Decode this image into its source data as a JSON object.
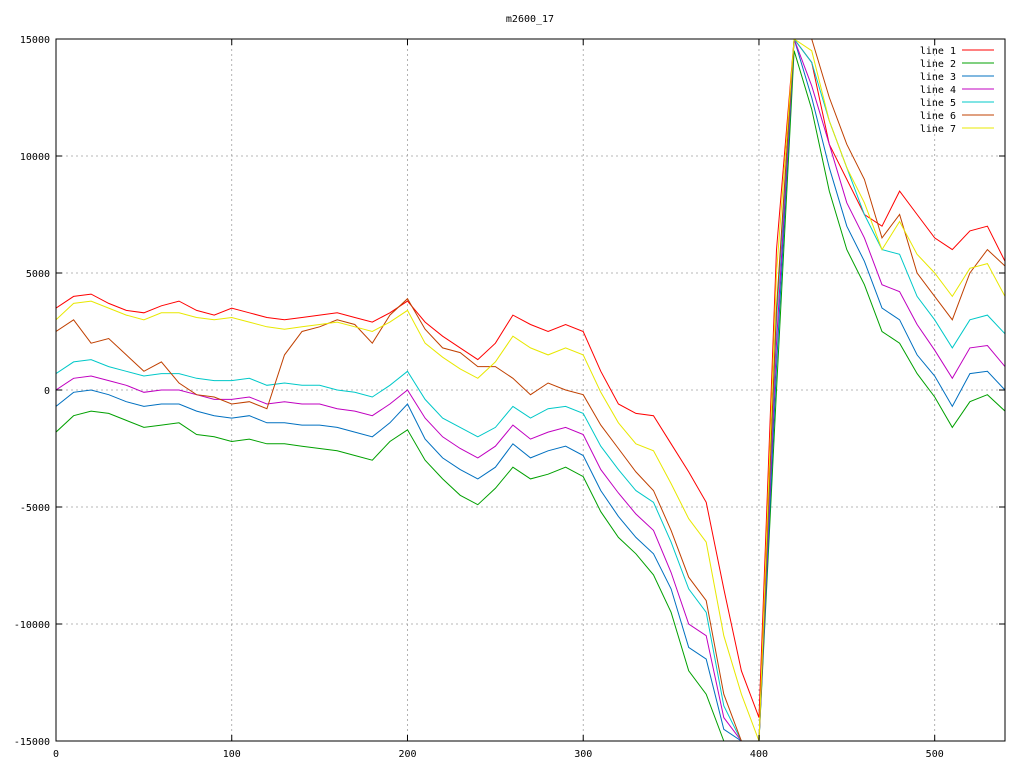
{
  "chart_data": {
    "type": "line",
    "title": "m2600_17",
    "xlabel": "",
    "ylabel": "",
    "xlim": [
      0,
      540
    ],
    "ylim": [
      -15000,
      15000
    ],
    "grid": true,
    "legend_position": "top-right",
    "x_ticks": [
      0,
      100,
      200,
      300,
      400,
      500
    ],
    "y_ticks": [
      -15000,
      -10000,
      -5000,
      0,
      5000,
      10000,
      15000
    ],
    "x": [
      0,
      10,
      20,
      30,
      40,
      50,
      60,
      70,
      80,
      90,
      100,
      110,
      120,
      130,
      140,
      150,
      160,
      170,
      180,
      190,
      200,
      210,
      220,
      230,
      240,
      250,
      260,
      270,
      280,
      290,
      300,
      310,
      320,
      330,
      340,
      350,
      360,
      370,
      380,
      390,
      400,
      410,
      420,
      430,
      440,
      450,
      460,
      470,
      480,
      490,
      500,
      510,
      520,
      530,
      540
    ],
    "series": [
      {
        "name": "line 1",
        "color": "#ff0000",
        "values": [
          3500,
          4000,
          4100,
          3700,
          3400,
          3300,
          3600,
          3800,
          3400,
          3200,
          3500,
          3300,
          3100,
          3000,
          3100,
          3200,
          3300,
          3100,
          2900,
          3300,
          3800,
          2900,
          2300,
          1800,
          1300,
          2000,
          3200,
          2800,
          2500,
          2800,
          2500,
          800,
          -600,
          -1000,
          -1100,
          -2300,
          -3500,
          -4800,
          -8500,
          -12000,
          -14000,
          6000,
          15000,
          14000,
          10500,
          9000,
          7500,
          7000,
          8500,
          7500,
          6500,
          6000,
          6800,
          7000,
          5500
        ]
      },
      {
        "name": "line 2",
        "color": "#00a000",
        "values": [
          -1800,
          -1100,
          -900,
          -1000,
          -1300,
          -1600,
          -1500,
          -1400,
          -1900,
          -2000,
          -2200,
          -2100,
          -2300,
          -2300,
          -2400,
          -2500,
          -2600,
          -2800,
          -3000,
          -2200,
          -1700,
          -3000,
          -3800,
          -4500,
          -4900,
          -4200,
          -3300,
          -3800,
          -3600,
          -3300,
          -3700,
          -5200,
          -6300,
          -7000,
          -7900,
          -9500,
          -12000,
          -13000,
          -15000,
          -15000,
          -15000,
          0,
          14500,
          12000,
          8500,
          6000,
          4500,
          2500,
          2000,
          700,
          -300,
          -1600,
          -500,
          -200,
          -900
        ]
      },
      {
        "name": "line 3",
        "color": "#0070c0",
        "values": [
          -700,
          -100,
          0,
          -200,
          -500,
          -700,
          -600,
          -600,
          -900,
          -1100,
          -1200,
          -1100,
          -1400,
          -1400,
          -1500,
          -1500,
          -1600,
          -1800,
          -2000,
          -1400,
          -600,
          -2100,
          -2900,
          -3400,
          -3800,
          -3300,
          -2300,
          -2900,
          -2600,
          -2400,
          -2800,
          -4300,
          -5400,
          -6300,
          -7000,
          -8500,
          -11000,
          -11500,
          -14500,
          -15000,
          -15000,
          1000,
          15000,
          12500,
          9500,
          7000,
          5500,
          3500,
          3000,
          1500,
          600,
          -700,
          700,
          800,
          0
        ]
      },
      {
        "name": "line 4",
        "color": "#c000c0",
        "values": [
          0,
          500,
          600,
          400,
          200,
          -100,
          0,
          0,
          -200,
          -400,
          -400,
          -300,
          -600,
          -500,
          -600,
          -600,
          -800,
          -900,
          -1100,
          -600,
          0,
          -1200,
          -2000,
          -2500,
          -2900,
          -2400,
          -1500,
          -2100,
          -1800,
          -1600,
          -1900,
          -3400,
          -4400,
          -5300,
          -6000,
          -7800,
          -10000,
          -10500,
          -14000,
          -15000,
          -15000,
          2000,
          15000,
          13000,
          10500,
          8000,
          6500,
          4500,
          4200,
          2800,
          1700,
          500,
          1800,
          1900,
          1000
        ]
      },
      {
        "name": "line 5",
        "color": "#00c8c8",
        "values": [
          700,
          1200,
          1300,
          1000,
          800,
          600,
          700,
          700,
          500,
          400,
          400,
          500,
          200,
          300,
          200,
          200,
          0,
          -100,
          -300,
          200,
          800,
          -400,
          -1200,
          -1600,
          -2000,
          -1600,
          -700,
          -1200,
          -800,
          -700,
          -1000,
          -2400,
          -3400,
          -4300,
          -4800,
          -6500,
          -8500,
          -9500,
          -13500,
          -15000,
          -15000,
          3000,
          15000,
          14000,
          11500,
          9500,
          7500,
          6000,
          5800,
          4000,
          3000,
          1800,
          3000,
          3200,
          2400
        ]
      },
      {
        "name": "line 6",
        "color": "#c04000",
        "values": [
          2500,
          3000,
          2000,
          2200,
          1500,
          800,
          1200,
          300,
          -200,
          -300,
          -600,
          -500,
          -800,
          1500,
          2500,
          2700,
          3000,
          2800,
          2000,
          3200,
          3900,
          2600,
          1800,
          1600,
          1000,
          1000,
          500,
          -200,
          300,
          0,
          -200,
          -1500,
          -2500,
          -3500,
          -4300,
          -6000,
          -8000,
          -9000,
          -13000,
          -15000,
          -15000,
          3500,
          15000,
          15000,
          12500,
          10500,
          9000,
          6500,
          7500,
          5000,
          4000,
          3000,
          5000,
          6000,
          5300
        ]
      },
      {
        "name": "line 7",
        "color": "#e8e800",
        "values": [
          3000,
          3700,
          3800,
          3500,
          3200,
          3000,
          3300,
          3300,
          3100,
          3000,
          3100,
          2900,
          2700,
          2600,
          2700,
          2800,
          2900,
          2700,
          2500,
          2900,
          3400,
          2000,
          1400,
          900,
          500,
          1200,
          2300,
          1800,
          1500,
          1800,
          1500,
          -100,
          -1400,
          -2300,
          -2600,
          -4000,
          -5500,
          -6500,
          -10500,
          -13000,
          -15000,
          5000,
          15000,
          14500,
          11500,
          9500,
          8000,
          6000,
          7200,
          5800,
          5000,
          4000,
          5200,
          5400,
          4000
        ]
      }
    ]
  }
}
